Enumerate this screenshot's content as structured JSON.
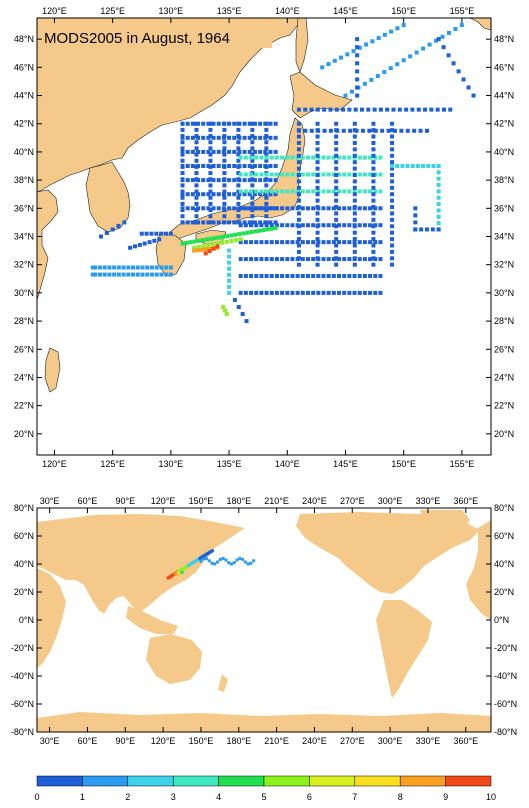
{
  "map1": {
    "title": "MODS2005 in August, 1964",
    "lon_ticks": [
      "120°E",
      "125°E",
      "130°E",
      "135°E",
      "140°E",
      "145°E",
      "150°E",
      "155°E"
    ],
    "lat_ticks": [
      "20°N",
      "22°N",
      "24°N",
      "26°N",
      "28°N",
      "30°N",
      "32°N",
      "34°N",
      "36°N",
      "38°N",
      "40°N",
      "42°N",
      "44°N",
      "46°N",
      "48°N"
    ],
    "extent": {
      "lon": [
        118.5,
        157.5
      ],
      "lat": [
        18.5,
        49.5
      ]
    }
  },
  "map2": {
    "lon_ticks": [
      "30°E",
      "60°E",
      "90°E",
      "120°E",
      "150°E",
      "180°E",
      "210°E",
      "240°E",
      "270°E",
      "300°E",
      "330°E",
      "360°E"
    ],
    "lat_ticks": [
      "-80°N",
      "-60°N",
      "-40°N",
      "-20°N",
      "0°N",
      "20°N",
      "40°N",
      "60°N",
      "80°N"
    ],
    "extent": {
      "lon": [
        20,
        380
      ],
      "lat": [
        -80,
        80
      ]
    }
  },
  "colorbar": {
    "labels": [
      "0",
      "1",
      "2",
      "3",
      "4",
      "5",
      "6",
      "7",
      "8",
      "9",
      "10"
    ],
    "colors": [
      "#1e5fd8",
      "#2b9bf0",
      "#3fd0ea",
      "#3fe8c0",
      "#20e050",
      "#8ff020",
      "#d8f020",
      "#f8e020",
      "#f8a020",
      "#f04818"
    ]
  },
  "land_color": "#f5c98a"
}
